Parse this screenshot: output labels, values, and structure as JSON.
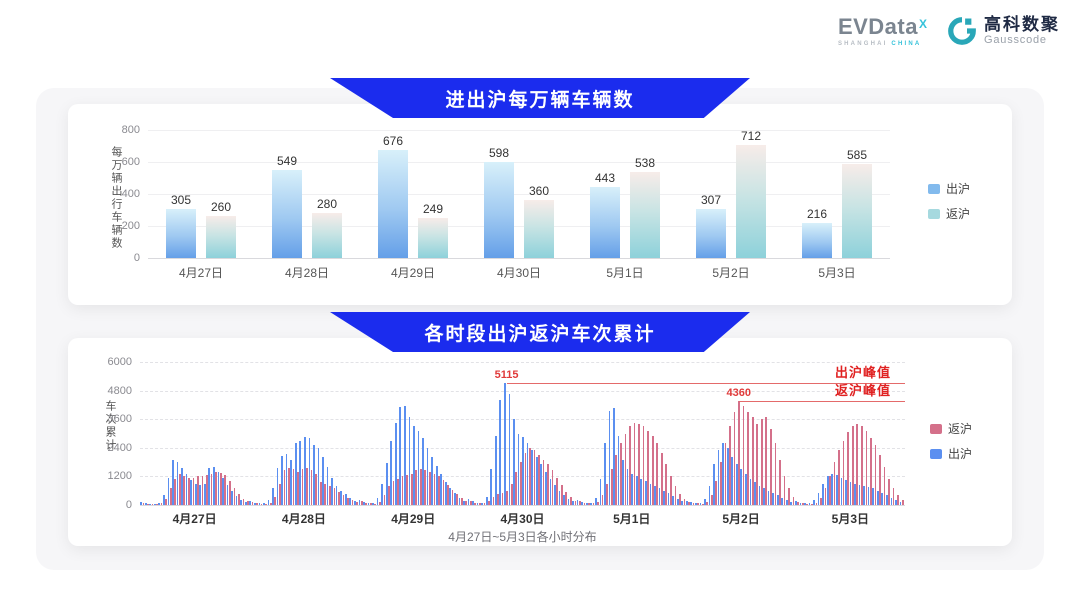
{
  "logos": {
    "evdata": {
      "text": "EVData",
      "sup": "X",
      "sub1": "SHANGHAI",
      "sub2": "CHINA"
    },
    "gausscode": {
      "cn": "高科数聚",
      "en": "Gausscode",
      "color": "#29a7b8"
    }
  },
  "colors": {
    "banner": "#1b2cee",
    "chart1_out_top": "#d8f0fa",
    "chart1_out_bottom": "#649fe8",
    "chart1_ret_top": "#f7ece9",
    "chart1_ret_bottom": "#8dd1da",
    "chart2_out": "#5b8ff0",
    "chart2_ret": "#d4708a",
    "annotation_red": "#e03a3a"
  },
  "chart_data": [
    {
      "type": "bar",
      "title": "进出沪每万辆车辆数",
      "ylabel": "每万辆出行车辆数",
      "ylim": [
        0,
        800
      ],
      "yticks": [
        0,
        200,
        400,
        600,
        800
      ],
      "categories": [
        "4月27日",
        "4月28日",
        "4月29日",
        "4月30日",
        "5月1日",
        "5月2日",
        "5月3日"
      ],
      "series": [
        {
          "name": "出沪",
          "values": [
            305,
            549,
            676,
            598,
            443,
            307,
            216
          ]
        },
        {
          "name": "返沪",
          "values": [
            260,
            280,
            249,
            360,
            538,
            712,
            585
          ]
        }
      ],
      "legend": [
        "出沪",
        "返沪"
      ],
      "grid": "solid-light",
      "legend_position": "right"
    },
    {
      "type": "bar",
      "title": "各时段出沪返沪车次累计",
      "ylabel": "车次累计",
      "xlabel": "4月27日~5月3日各小时分布",
      "ylim": [
        0,
        6000
      ],
      "yticks": [
        0,
        1200,
        2400,
        3600,
        4800,
        6000
      ],
      "categories": [
        "4月27日",
        "4月28日",
        "4月29日",
        "4月30日",
        "5月1日",
        "5月2日",
        "5月3日"
      ],
      "legend": [
        "返沪",
        "出沪"
      ],
      "grid": "dashed-light",
      "legend_position": "right",
      "annotations": [
        {
          "series": "出沪",
          "label": "出沪峰值",
          "value": 5115
        },
        {
          "series": "返沪",
          "label": "返沪峰值",
          "value": 4360
        }
      ],
      "series": [
        {
          "name": "出沪",
          "hourly": [
            [
              120,
              80,
              60,
              50,
              90,
              420,
              1150,
              1900,
              1800,
              1550,
              1300,
              1050,
              900,
              820,
              900,
              1550,
              1600,
              1400,
              1150,
              850,
              600,
              380,
              200,
              120
            ],
            [
              150,
              100,
              80,
              70,
              200,
              700,
              1550,
              2050,
              2150,
              1900,
              2600,
              2700,
              2850,
              2800,
              2500,
              2400,
              2000,
              1600,
              1150,
              800,
              600,
              450,
              300,
              180
            ],
            [
              200,
              120,
              90,
              80,
              300,
              900,
              1750,
              2700,
              3450,
              4100,
              4150,
              3700,
              3300,
              3100,
              2800,
              2400,
              2000,
              1650,
              1300,
              950,
              700,
              500,
              300,
              180
            ],
            [
              250,
              150,
              100,
              90,
              350,
              1500,
              2900,
              4400,
              5115,
              4650,
              3600,
              3000,
              2850,
              2600,
              2300,
              2000,
              1700,
              1400,
              1100,
              850,
              600,
              420,
              250,
              150
            ],
            [
              200,
              130,
              100,
              90,
              300,
              1100,
              2600,
              3950,
              4050,
              2900,
              1900,
              1500,
              1300,
              1200,
              1100,
              1000,
              900,
              800,
              700,
              600,
              500,
              380,
              250,
              150
            ],
            [
              180,
              120,
              90,
              80,
              250,
              800,
              1700,
              2300,
              2600,
              2400,
              2000,
              1700,
              1500,
              1300,
              1100,
              950,
              800,
              700,
              600,
              500,
              400,
              300,
              200,
              130
            ],
            [
              150,
              100,
              80,
              70,
              200,
              500,
              900,
              1200,
              1300,
              1250,
              1150,
              1050,
              950,
              900,
              850,
              800,
              750,
              700,
              600,
              500,
              400,
              300,
              200,
              120
            ]
          ]
        },
        {
          "name": "返沪",
          "hourly": [
            [
              100,
              60,
              50,
              40,
              70,
              250,
              700,
              1100,
              1300,
              1200,
              1150,
              1150,
              1200,
              1200,
              1250,
              1300,
              1400,
              1350,
              1250,
              1000,
              700,
              450,
              250,
              150
            ],
            [
              120,
              80,
              60,
              50,
              100,
              350,
              900,
              1450,
              1550,
              1500,
              1400,
              1500,
              1550,
              1450,
              1300,
              950,
              900,
              800,
              700,
              550,
              400,
              300,
              200,
              120
            ],
            [
              150,
              90,
              70,
              60,
              120,
              400,
              800,
              1000,
              1100,
              1200,
              1250,
              1300,
              1450,
              1500,
              1450,
              1400,
              1300,
              1200,
              1050,
              850,
              650,
              450,
              280,
              150
            ],
            [
              180,
              100,
              80,
              70,
              150,
              350,
              450,
              500,
              600,
              900,
              1400,
              1800,
              2200,
              2400,
              2300,
              2100,
              1900,
              1700,
              1450,
              1150,
              850,
              550,
              320,
              180
            ],
            [
              150,
              100,
              80,
              70,
              130,
              400,
              900,
              1500,
              2100,
              2600,
              3000,
              3300,
              3450,
              3400,
              3300,
              3100,
              2900,
              2600,
              2200,
              1700,
              1200,
              800,
              450,
              250
            ],
            [
              140,
              90,
              70,
              60,
              120,
              400,
              1000,
              1800,
              2600,
              3300,
              3900,
              4360,
              4150,
              3900,
              3700,
              3400,
              3600,
              3700,
              3200,
              2600,
              1900,
              1200,
              700,
              350
            ],
            [
              120,
              80,
              60,
              50,
              100,
              300,
              700,
              1200,
              1800,
              2300,
              2700,
              3050,
              3300,
              3400,
              3300,
              3100,
              2800,
              2500,
              2100,
              1600,
              1100,
              700,
              400,
              200
            ]
          ]
        }
      ]
    }
  ]
}
